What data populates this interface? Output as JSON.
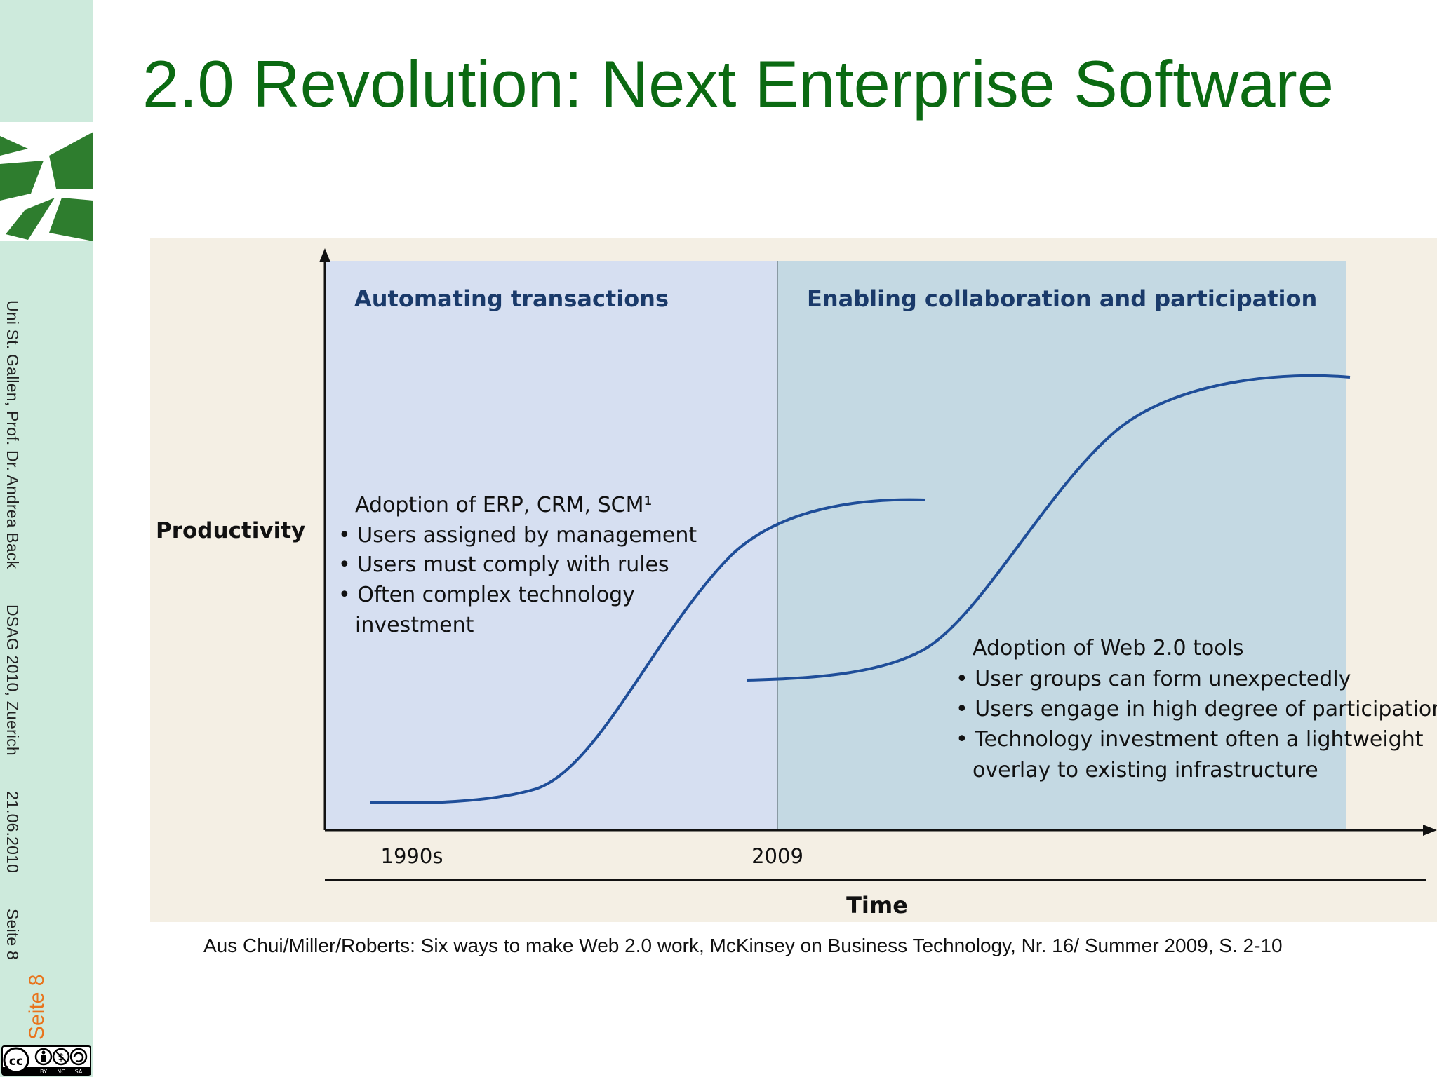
{
  "slide": {
    "title": "2.0 Revolution: Next Enterprise Software",
    "sidebar_footer": [
      "Uni St. Gallen, Prof. Dr. Andrea Back",
      "DSAG  2010, Zuerich",
      "21.06.2010",
      "Seite 8"
    ],
    "page_label": "Seite 8",
    "caption": "Aus Chui/Miller/Roberts: Six ways to make Web 2.0 work, McKinsey on  Business Technology, Nr. 16/ Summer 2009, S. 2-10",
    "license_badge": [
      "cc",
      "BY",
      "NC",
      "SA"
    ]
  },
  "diagram": {
    "y_axis_label": "Productivity",
    "x_axis_label": "Time",
    "x_ticks": [
      "1990s",
      "2009"
    ],
    "phases": [
      {
        "heading": "Automating transactions",
        "lines": [
          "Adoption of ERP, CRM, SCM¹",
          "• Users assigned by management",
          "• Users must comply with rules",
          "• Often complex technology",
          "investment"
        ]
      },
      {
        "heading": "Enabling collaboration and participation",
        "lines": [
          "Adoption of Web 2.0 tools",
          "• User groups can form unexpectedly",
          "• Users engage in high degree of participation",
          "• Technology investment often a lightweight",
          "overlay to existing infrastructure"
        ]
      }
    ],
    "colors": {
      "background": "#f4efe4",
      "phase1": "#d6dff1",
      "phase2": "#c4d9e3",
      "curve": "#1f4e99",
      "heading": "#1a3a6a"
    }
  }
}
